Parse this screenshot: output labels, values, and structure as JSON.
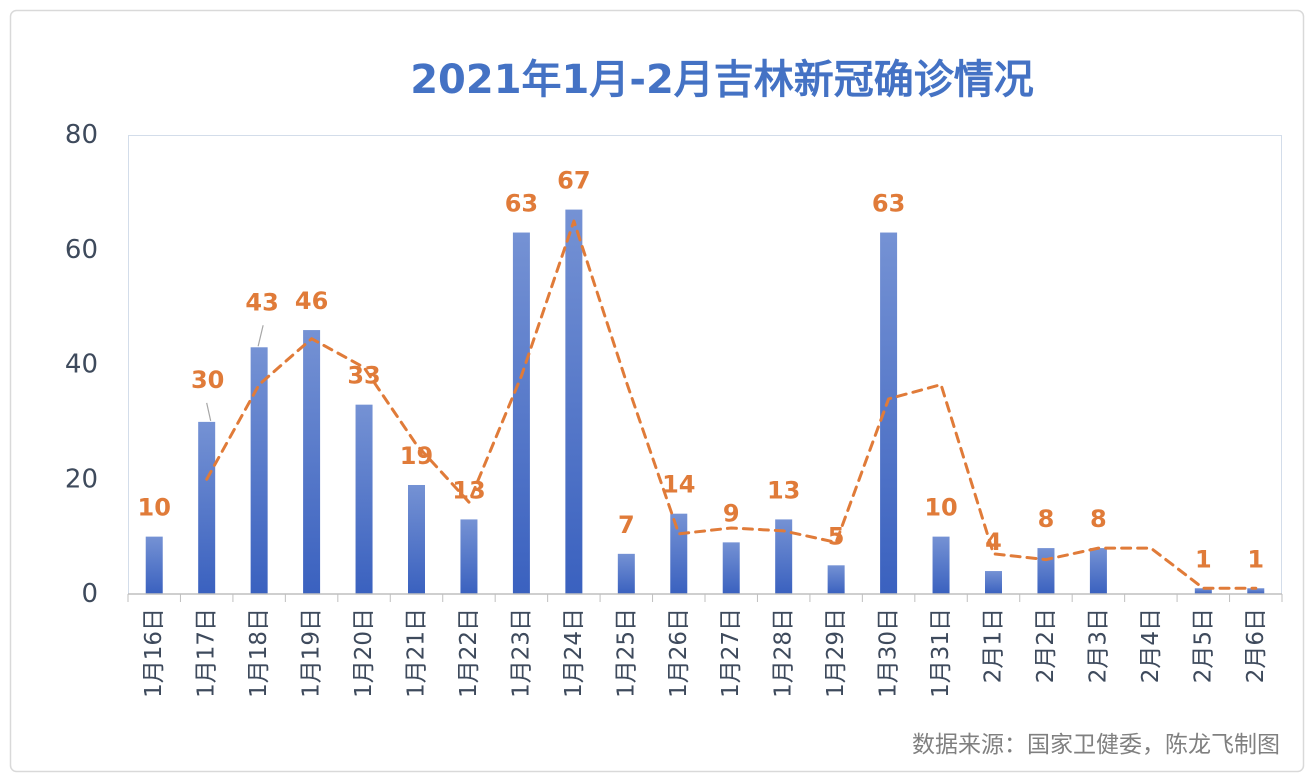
{
  "chart_data": {
    "type": "bar",
    "title": "2021年1月-2月吉林新冠确诊情况",
    "categories": [
      "1月16日",
      "1月17日",
      "1月18日",
      "1月19日",
      "1月20日",
      "1月21日",
      "1月22日",
      "1月23日",
      "1月24日",
      "1月25日",
      "1月26日",
      "1月27日",
      "1月28日",
      "1月29日",
      "1月30日",
      "1月31日",
      "2月1日",
      "2月2日",
      "2月3日",
      "2月4日",
      "2月5日",
      "2月6日"
    ],
    "series": [
      {
        "type": "bar",
        "values": [
          10,
          30,
          43,
          46,
          33,
          19,
          13,
          63,
          67,
          7,
          14,
          9,
          13,
          5,
          63,
          10,
          4,
          8,
          8,
          null,
          1,
          1
        ],
        "data_labels": true
      },
      {
        "type": "line",
        "style": "dashed",
        "values": [
          null,
          20,
          36.5,
          44.5,
          39.5,
          26,
          16,
          38,
          65,
          37,
          10.5,
          11.5,
          11,
          9,
          34,
          36.5,
          7,
          6,
          8,
          8,
          1,
          1
        ]
      }
    ],
    "ylim": [
      0,
      80
    ],
    "yticks": [
      0,
      20,
      40,
      60,
      80
    ],
    "grid": false,
    "legend": "none",
    "note": "数据来源：国家卫健委，陈龙飞制图",
    "colors": {
      "title": "#4472C4",
      "bar_top": "#7592D4",
      "bar_bottom": "#3A61BF",
      "labels": "#E07B39",
      "trend": "#E07B39"
    }
  }
}
